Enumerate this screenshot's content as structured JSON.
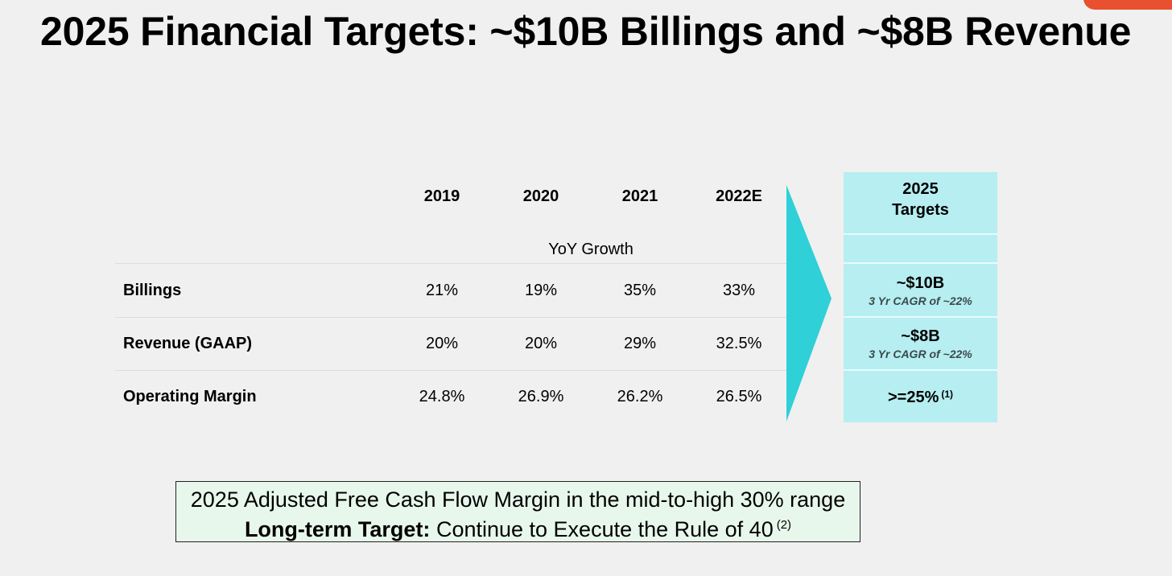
{
  "slide": {
    "title": "2025 Financial Targets: ~$10B Billings and ~$8B Revenue",
    "accent_color": "#e8502f"
  },
  "table": {
    "columns": [
      "2019",
      "2020",
      "2021",
      "2022E"
    ],
    "subheader": "YoY Growth",
    "rows": [
      {
        "label": "Billings",
        "values": [
          "21%",
          "19%",
          "35%",
          "33%"
        ]
      },
      {
        "label": "Revenue (GAAP)",
        "values": [
          "20%",
          "20%",
          "29%",
          "32.5%"
        ]
      },
      {
        "label": "Operating Margin",
        "values": [
          "24.8%",
          "26.9%",
          "26.2%",
          "26.5%"
        ]
      }
    ],
    "arrow_color": "#2fd0d8"
  },
  "targets": {
    "header_line1": "2025",
    "header_line2": "Targets",
    "items": [
      {
        "value": "~$10B",
        "note": "3 Yr CAGR of ~22%"
      },
      {
        "value": "~$8B",
        "note": "3 Yr CAGR of ~22%"
      },
      {
        "value": ">=25%",
        "footnote": "(1)"
      }
    ],
    "bg_color": "#b6eef1"
  },
  "callout": {
    "line1": "2025 Adjusted Free Cash Flow Margin in the mid-to-high 30% range",
    "line2_bold": "Long-term Target:",
    "line2_rest": " Continue to Execute the Rule of 40",
    "line2_footnote": "(2)"
  }
}
